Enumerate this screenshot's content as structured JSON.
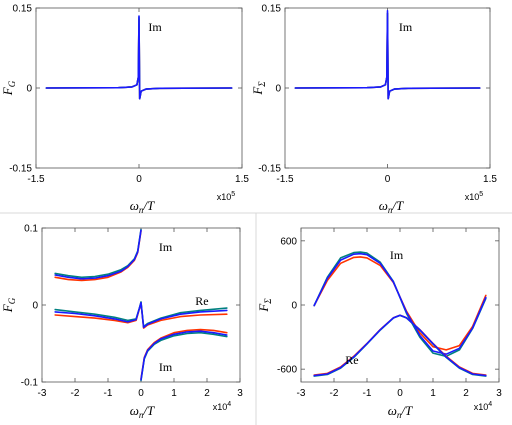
{
  "chart_data": [
    {
      "type": "line",
      "panel": "top-left",
      "xlabel": "ω_n/T",
      "ylabel": "F_G",
      "x_multiplier": "x10^5",
      "xlim": [
        -1.5,
        1.5
      ],
      "ylim": [
        -0.15,
        0.15
      ],
      "xticks": [
        -1.5,
        0,
        1.5
      ],
      "xtick_labels": [
        "-1.5",
        "0",
        "1.5"
      ],
      "yticks": [
        -0.15,
        0,
        0.15
      ],
      "ytick_labels": [
        "-0.15",
        "0",
        "0.15"
      ],
      "annotations": [
        {
          "text": "Im",
          "x": 0.02,
          "y": 0.107
        }
      ],
      "series": [
        {
          "color": "#ff3300",
          "form": "spike",
          "x": [
            -1.35,
            -0.3,
            -0.1,
            -0.03,
            -0.01,
            0,
            0.01,
            0.03,
            0.1,
            0.3,
            1.35
          ],
          "y": [
            0,
            0.0005,
            0.002,
            0.006,
            0.02,
            0.13,
            -0.02,
            -0.006,
            -0.002,
            -0.0005,
            0
          ]
        },
        {
          "color": "#008080",
          "form": "spike",
          "x": [
            -1.35,
            -0.3,
            -0.1,
            -0.03,
            -0.01,
            0,
            0.01,
            0.03,
            0.1,
            0.3,
            1.35
          ],
          "y": [
            0,
            0.0005,
            0.002,
            0.006,
            0.02,
            0.133,
            -0.02,
            -0.006,
            -0.002,
            -0.0005,
            0
          ]
        },
        {
          "color": "#1a1aff",
          "form": "spike",
          "x": [
            -1.35,
            -0.3,
            -0.1,
            -0.03,
            -0.01,
            0,
            0.01,
            0.03,
            0.1,
            0.3,
            1.35
          ],
          "y": [
            0,
            0.0005,
            0.002,
            0.006,
            0.02,
            0.135,
            -0.02,
            -0.006,
            -0.002,
            -0.0005,
            0
          ]
        }
      ]
    },
    {
      "type": "line",
      "panel": "top-right",
      "xlabel": "ω_n/T",
      "ylabel": "F_Σ",
      "x_multiplier": "x10^5",
      "xlim": [
        -1.5,
        1.5
      ],
      "ylim": [
        -0.15,
        0.15
      ],
      "xticks": [
        -1.5,
        0,
        1.5
      ],
      "xtick_labels": [
        "-1.5",
        "0",
        "1.5"
      ],
      "yticks": [
        -0.15,
        0,
        0.15
      ],
      "ytick_labels": [
        "-0.15",
        "0",
        "0.15"
      ],
      "annotations": [
        {
          "text": "Im",
          "x": 0.05,
          "y": 0.107
        }
      ],
      "series": [
        {
          "color": "#ff3300",
          "form": "spike",
          "x": [
            -1.35,
            -0.3,
            -0.1,
            -0.03,
            -0.01,
            0,
            0.01,
            0.03,
            0.1,
            0.3,
            1.35
          ],
          "y": [
            0,
            0.0005,
            0.002,
            0.006,
            0.02,
            0.14,
            -0.02,
            -0.006,
            -0.002,
            -0.0005,
            0
          ]
        },
        {
          "color": "#008080",
          "form": "spike",
          "x": [
            -1.35,
            -0.3,
            -0.1,
            -0.03,
            -0.01,
            0,
            0.01,
            0.03,
            0.1,
            0.3,
            1.35
          ],
          "y": [
            0,
            0.0005,
            0.002,
            0.006,
            0.02,
            0.14,
            -0.02,
            -0.006,
            -0.002,
            -0.0005,
            0
          ]
        },
        {
          "color": "#1a1aff",
          "form": "spike",
          "x": [
            -1.35,
            -0.3,
            -0.1,
            -0.03,
            -0.01,
            0,
            0.01,
            0.03,
            0.1,
            0.3,
            1.35
          ],
          "y": [
            0,
            0.0005,
            0.002,
            0.006,
            0.02,
            0.145,
            -0.02,
            -0.006,
            -0.002,
            -0.0005,
            0
          ]
        }
      ]
    },
    {
      "type": "line",
      "panel": "bottom-left",
      "xlabel": "ω_n/T",
      "ylabel": "F_G",
      "x_multiplier": "x10^4",
      "xlim": [
        -3,
        3
      ],
      "ylim": [
        -0.1,
        0.1
      ],
      "xticks": [
        -3,
        -2,
        -1,
        0,
        1,
        2,
        3
      ],
      "xtick_labels": [
        "-3",
        "-2",
        "-1",
        "0",
        "1",
        "2",
        "3"
      ],
      "yticks": [
        -0.1,
        0,
        0.1
      ],
      "ytick_labels": [
        "-0.1",
        "0",
        "0.1"
      ],
      "annotations": [
        {
          "text": "Im",
          "x": 0.3,
          "y": 0.07
        },
        {
          "text": "Re",
          "x": 1.4,
          "y": 0.0
        },
        {
          "text": "Im",
          "x": 0.3,
          "y": -0.086
        }
      ],
      "series": [
        {
          "name": "",
          "color": "#ff3300",
          "x": [
            -2.6,
            -2.2,
            -1.8,
            -1.4,
            -1.0,
            -0.6,
            -0.4,
            -0.2,
            -0.1,
            0
          ],
          "y": [
            0.036,
            0.033,
            0.032,
            0.033,
            0.036,
            0.043,
            0.049,
            0.058,
            0.068,
            0.096
          ]
        },
        {
          "name": "",
          "color": "#008080",
          "x": [
            -2.6,
            -2.2,
            -1.8,
            -1.4,
            -1.0,
            -0.6,
            -0.4,
            -0.2,
            -0.1,
            0
          ],
          "y": [
            0.041,
            0.038,
            0.036,
            0.037,
            0.04,
            0.046,
            0.051,
            0.06,
            0.07,
            0.098
          ]
        },
        {
          "name": "",
          "color": "#1a1aff",
          "x": [
            -2.6,
            -2.2,
            -1.8,
            -1.4,
            -1.0,
            -0.6,
            -0.4,
            -0.2,
            -0.1,
            0
          ],
          "y": [
            0.039,
            0.036,
            0.034,
            0.035,
            0.038,
            0.044,
            0.05,
            0.059,
            0.069,
            0.097
          ]
        },
        {
          "name": "",
          "color": "#ff3300",
          "x": [
            -2.6,
            -2.0,
            -1.4,
            -0.8,
            -0.4,
            -0.15,
            -0.05,
            0,
            0.08,
            0.2,
            0.6,
            1.2,
            1.8,
            2.6
          ],
          "y": [
            -0.013,
            -0.015,
            -0.017,
            -0.02,
            -0.023,
            -0.02,
            -0.005,
            0.003,
            -0.03,
            -0.026,
            -0.02,
            -0.015,
            -0.013,
            -0.012
          ]
        },
        {
          "name": "",
          "color": "#008080",
          "x": [
            -2.6,
            -2.0,
            -1.4,
            -0.8,
            -0.4,
            -0.15,
            -0.05,
            0,
            0.08,
            0.2,
            0.6,
            1.2,
            1.8,
            2.6
          ],
          "y": [
            -0.006,
            -0.009,
            -0.012,
            -0.016,
            -0.02,
            -0.018,
            -0.004,
            0.004,
            -0.028,
            -0.024,
            -0.017,
            -0.01,
            -0.007,
            -0.004
          ]
        },
        {
          "name": "",
          "color": "#1a1aff",
          "x": [
            -2.6,
            -2.0,
            -1.4,
            -0.8,
            -0.4,
            -0.15,
            -0.05,
            0,
            0.08,
            0.2,
            0.6,
            1.2,
            1.8,
            2.6
          ],
          "y": [
            -0.009,
            -0.011,
            -0.014,
            -0.018,
            -0.022,
            -0.019,
            -0.004,
            0.003,
            -0.029,
            -0.025,
            -0.018,
            -0.012,
            -0.009,
            -0.007
          ]
        },
        {
          "name": "",
          "color": "#ff3300",
          "x": [
            0,
            0.1,
            0.2,
            0.4,
            0.6,
            1.0,
            1.4,
            1.8,
            2.2,
            2.6
          ],
          "y": [
            -0.096,
            -0.068,
            -0.058,
            -0.049,
            -0.043,
            -0.036,
            -0.033,
            -0.032,
            -0.033,
            -0.036
          ]
        },
        {
          "name": "",
          "color": "#008080",
          "x": [
            0,
            0.1,
            0.2,
            0.4,
            0.6,
            1.0,
            1.4,
            1.8,
            2.2,
            2.6
          ],
          "y": [
            -0.098,
            -0.07,
            -0.06,
            -0.051,
            -0.046,
            -0.04,
            -0.037,
            -0.036,
            -0.038,
            -0.041
          ]
        },
        {
          "name": "",
          "color": "#1a1aff",
          "x": [
            0,
            0.1,
            0.2,
            0.4,
            0.6,
            1.0,
            1.4,
            1.8,
            2.2,
            2.6
          ],
          "y": [
            -0.097,
            -0.069,
            -0.059,
            -0.05,
            -0.044,
            -0.038,
            -0.035,
            -0.034,
            -0.036,
            -0.039
          ]
        }
      ]
    },
    {
      "type": "line",
      "panel": "bottom-right",
      "xlabel": "ω_n/T",
      "ylabel": "F_Σ",
      "x_multiplier": "x10^4",
      "xlim": [
        -3,
        3
      ],
      "ylim": [
        -720,
        720
      ],
      "xticks": [
        -3,
        -2,
        -1,
        0,
        1,
        2,
        3
      ],
      "xtick_labels": [
        "-3",
        "-2",
        "-1",
        "0",
        "1",
        "2",
        "3"
      ],
      "yticks": [
        -600,
        0,
        600
      ],
      "ytick_labels": [
        "-600",
        "0",
        "600"
      ],
      "annotations": [
        {
          "text": "Im",
          "x": -0.55,
          "y": 430
        },
        {
          "text": "Re",
          "x": -1.9,
          "y": -550
        }
      ],
      "series": [
        {
          "name": "",
          "color": "#ff3300",
          "x": [
            -2.6,
            -2.2,
            -1.8,
            -1.4,
            -1.2,
            -1.0,
            -0.6,
            -0.2,
            0.2,
            0.6,
            1.0,
            1.4,
            1.8,
            2.2,
            2.6
          ],
          "y": [
            -5,
            230,
            390,
            445,
            450,
            440,
            370,
            210,
            -60,
            -260,
            -390,
            -420,
            -380,
            -200,
            90
          ]
        },
        {
          "name": "",
          "color": "#008080",
          "x": [
            -2.6,
            -2.2,
            -1.8,
            -1.4,
            -1.2,
            -1.0,
            -0.6,
            -0.2,
            0.2,
            0.6,
            1.0,
            1.4,
            1.8,
            2.2,
            2.6
          ],
          "y": [
            -5,
            260,
            440,
            490,
            495,
            485,
            400,
            220,
            -80,
            -300,
            -450,
            -480,
            -420,
            -220,
            60
          ]
        },
        {
          "name": "",
          "color": "#1a1aff",
          "x": [
            -2.6,
            -2.2,
            -1.8,
            -1.4,
            -1.2,
            -1.0,
            -0.6,
            -0.2,
            0.2,
            0.6,
            1.0,
            1.4,
            1.8,
            2.2,
            2.6
          ],
          "y": [
            -5,
            250,
            420,
            475,
            480,
            470,
            390,
            215,
            -70,
            -285,
            -430,
            -460,
            -405,
            -215,
            70
          ]
        },
        {
          "name": "",
          "color": "#ff3300",
          "x": [
            -2.6,
            -2.2,
            -1.8,
            -1.4,
            -1.0,
            -0.6,
            -0.2,
            0,
            0.2,
            0.6,
            1.0,
            1.4,
            1.8,
            2.2,
            2.6
          ],
          "y": [
            -655,
            -640,
            -580,
            -480,
            -360,
            -230,
            -120,
            -95,
            -120,
            -230,
            -360,
            -480,
            -580,
            -640,
            -655
          ]
        },
        {
          "name": "",
          "color": "#008080",
          "x": [
            -2.6,
            -2.2,
            -1.8,
            -1.4,
            -1.0,
            -0.6,
            -0.2,
            0,
            0.2,
            0.6,
            1.0,
            1.4,
            1.8,
            2.2,
            2.6
          ],
          "y": [
            -665,
            -650,
            -590,
            -490,
            -365,
            -235,
            -122,
            -97,
            -122,
            -235,
            -365,
            -490,
            -590,
            -650,
            -665
          ]
        },
        {
          "name": "",
          "color": "#1a1aff",
          "x": [
            -2.6,
            -2.2,
            -1.8,
            -1.4,
            -1.0,
            -0.6,
            -0.2,
            0,
            0.2,
            0.6,
            1.0,
            1.4,
            1.8,
            2.2,
            2.6
          ],
          "y": [
            -660,
            -645,
            -585,
            -485,
            -362,
            -232,
            -121,
            -96,
            -121,
            -232,
            -362,
            -485,
            -585,
            -645,
            -660
          ]
        }
      ]
    }
  ]
}
